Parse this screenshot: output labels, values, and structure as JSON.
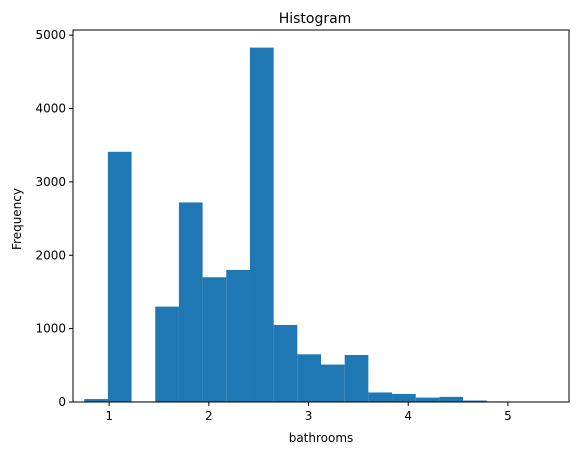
{
  "chart_data": {
    "type": "bar",
    "title": "Histogram",
    "xlabel": "bathrooms",
    "ylabel": "Frequency",
    "xlim": [
      0.6375,
      5.6125
    ],
    "ylim": [
      0,
      5070
    ],
    "x_ticks": [
      1,
      2,
      3,
      4,
      5
    ],
    "y_ticks": [
      0,
      1000,
      2000,
      3000,
      4000,
      5000
    ],
    "grid": false,
    "bar_color": "#1f77b4",
    "bins": [
      {
        "start": 0.75,
        "end": 0.9875,
        "value": 40
      },
      {
        "start": 0.9875,
        "end": 1.225,
        "value": 3410
      },
      {
        "start": 1.225,
        "end": 1.4625,
        "value": 8
      },
      {
        "start": 1.4625,
        "end": 1.7,
        "value": 1300
      },
      {
        "start": 1.7,
        "end": 1.9375,
        "value": 2720
      },
      {
        "start": 1.9375,
        "end": 2.175,
        "value": 1700
      },
      {
        "start": 2.175,
        "end": 2.4125,
        "value": 1800
      },
      {
        "start": 2.4125,
        "end": 2.65,
        "value": 4830
      },
      {
        "start": 2.65,
        "end": 2.8875,
        "value": 1050
      },
      {
        "start": 2.8875,
        "end": 3.125,
        "value": 650
      },
      {
        "start": 3.125,
        "end": 3.3625,
        "value": 510
      },
      {
        "start": 3.3625,
        "end": 3.6,
        "value": 640
      },
      {
        "start": 3.6,
        "end": 3.8375,
        "value": 130
      },
      {
        "start": 3.8375,
        "end": 4.075,
        "value": 110
      },
      {
        "start": 4.075,
        "end": 4.3125,
        "value": 60
      },
      {
        "start": 4.3125,
        "end": 4.55,
        "value": 70
      },
      {
        "start": 4.55,
        "end": 4.7875,
        "value": 20
      },
      {
        "start": 4.7875,
        "end": 5.025,
        "value": 8
      },
      {
        "start": 5.025,
        "end": 5.2625,
        "value": 5
      },
      {
        "start": 5.2625,
        "end": 5.5,
        "value": 2
      }
    ]
  }
}
